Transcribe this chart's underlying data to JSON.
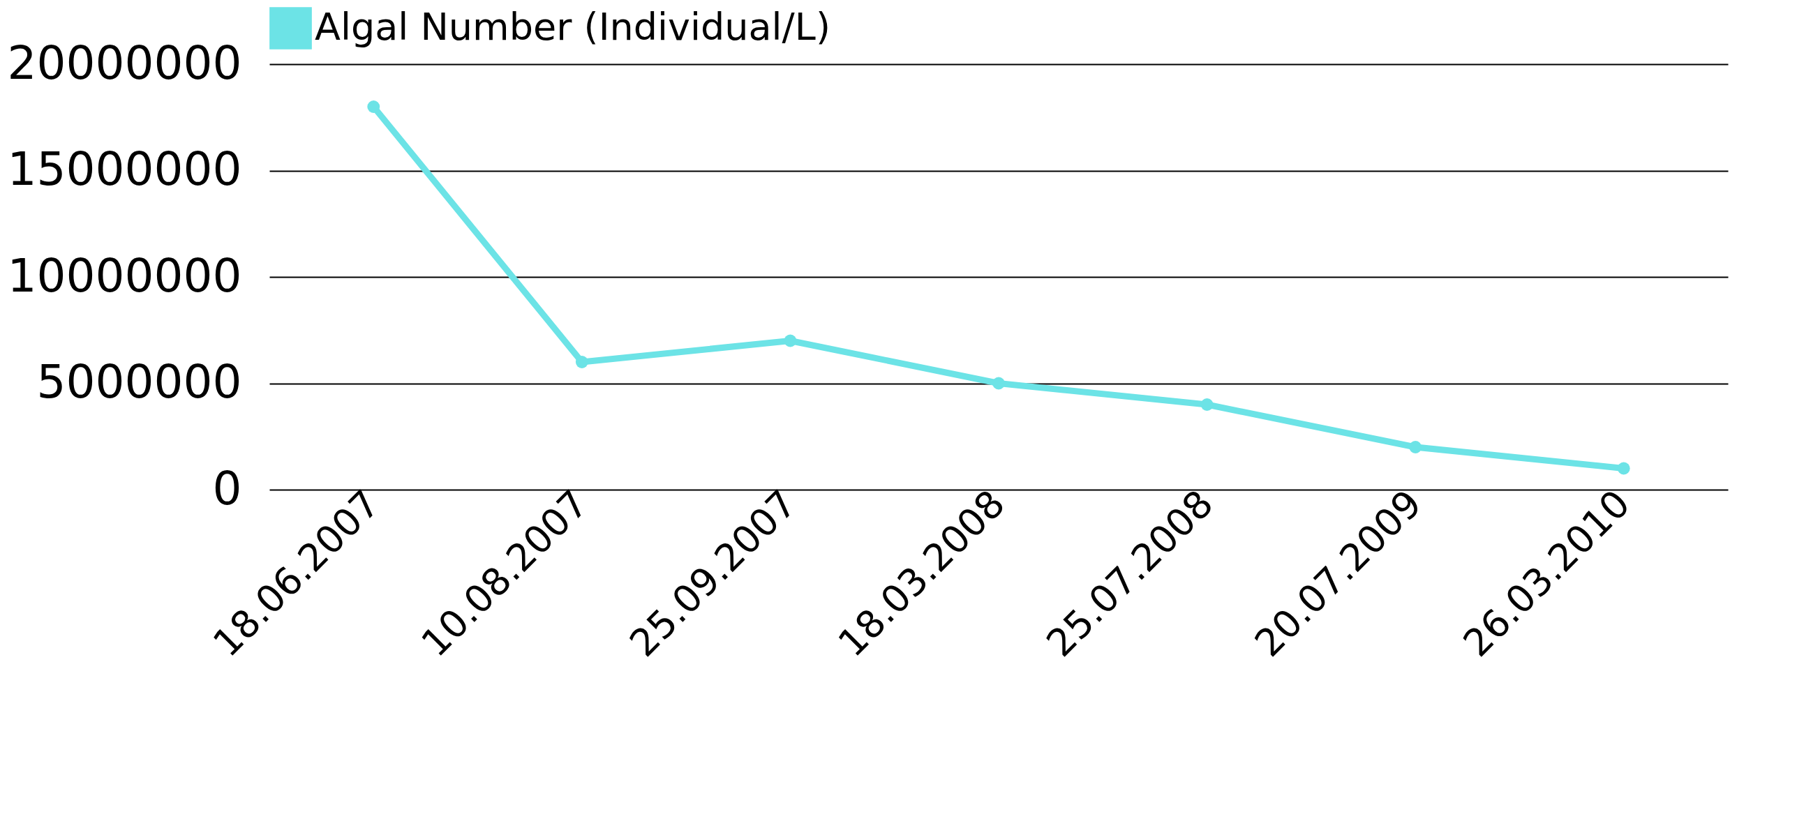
{
  "chart_data": {
    "type": "line",
    "categories": [
      "18.06.2007",
      "10.08.2007",
      "25.09.2007",
      "18.03.2008",
      "25.07.2008",
      "20.07.2009",
      "26.03.2010"
    ],
    "series": [
      {
        "name": "Algal Number (Individual/L)",
        "color": "#6ce3e6",
        "values": [
          18000000,
          6000000,
          7000000,
          5000000,
          4000000,
          2000000,
          1000000
        ]
      }
    ],
    "ylim": [
      0,
      20000000
    ],
    "yticks": [
      0,
      5000000,
      10000000,
      15000000,
      20000000
    ],
    "grid": "y",
    "legend": "top",
    "marker": "circle",
    "line_style": "solid"
  }
}
